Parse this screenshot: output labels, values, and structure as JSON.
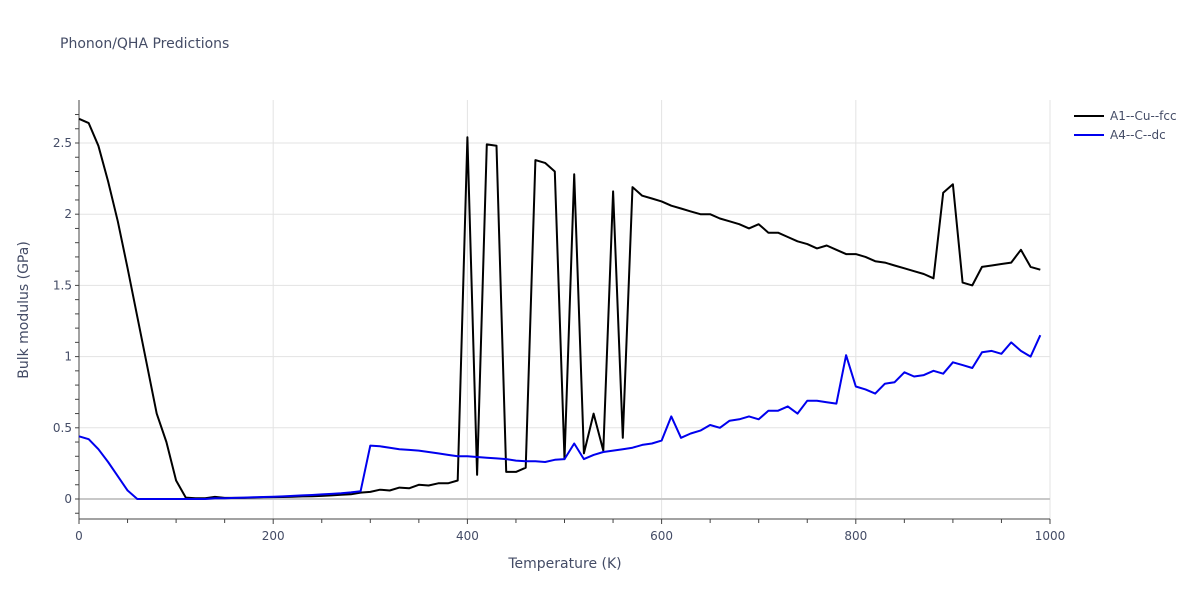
{
  "chart_title": "Phonon/QHA Predictions",
  "colors": {
    "series_1": "#000000",
    "series_2": "#0000ee",
    "grid": "#e3e3e3",
    "zeroline": "#c8c8c8",
    "axis_text": "#444c66"
  },
  "legend": {
    "items": [
      {
        "label": "A1--Cu--fcc",
        "color": "#000000"
      },
      {
        "label": "A4--C--dc",
        "color": "#0000ee"
      }
    ]
  },
  "axes": {
    "x": {
      "label": "Temperature (K)",
      "ticks": [
        "0",
        "200",
        "400",
        "600",
        "800",
        "1000"
      ]
    },
    "y": {
      "label": "Bulk modulus (GPa)",
      "ticks": [
        "0",
        "0.5",
        "1",
        "1.5",
        "2",
        "2.5"
      ]
    }
  },
  "chart_data": {
    "type": "line",
    "title": "Phonon/QHA Predictions",
    "xlabel": "Temperature (K)",
    "ylabel": "Bulk modulus (GPa)",
    "xlim": [
      0,
      1000
    ],
    "ylim": [
      -0.14,
      2.8
    ],
    "grid": true,
    "legend_position": "top-right outside",
    "series": [
      {
        "name": "A1--Cu--fcc",
        "color": "#000000",
        "x": [
          0,
          10,
          20,
          30,
          40,
          50,
          60,
          70,
          80,
          90,
          100,
          110,
          120,
          130,
          140,
          150,
          160,
          170,
          180,
          190,
          200,
          210,
          220,
          230,
          240,
          250,
          260,
          270,
          280,
          290,
          300,
          310,
          320,
          330,
          340,
          350,
          360,
          370,
          380,
          390,
          400,
          410,
          420,
          430,
          440,
          450,
          460,
          470,
          480,
          490,
          500,
          510,
          520,
          530,
          540,
          550,
          560,
          570,
          580,
          590,
          600,
          610,
          620,
          630,
          640,
          650,
          660,
          670,
          680,
          690,
          700,
          710,
          720,
          730,
          740,
          750,
          760,
          770,
          780,
          790,
          800,
          810,
          820,
          830,
          840,
          850,
          860,
          870,
          880,
          890,
          900,
          910,
          920,
          930,
          940,
          950,
          960,
          970,
          980,
          990
        ],
        "values": [
          2.67,
          2.64,
          2.48,
          2.23,
          1.95,
          1.62,
          1.28,
          0.94,
          0.6,
          0.4,
          0.13,
          0.01,
          0.005,
          0.005,
          0.015,
          0.008,
          0.008,
          0.008,
          0.01,
          0.012,
          0.013,
          0.014,
          0.016,
          0.018,
          0.02,
          0.022,
          0.025,
          0.03,
          0.033,
          0.045,
          0.05,
          0.065,
          0.06,
          0.08,
          0.075,
          0.1,
          0.095,
          0.11,
          0.11,
          0.13,
          2.54,
          0.17,
          2.49,
          2.48,
          0.19,
          0.19,
          0.22,
          2.38,
          2.36,
          2.3,
          0.28,
          2.28,
          0.32,
          0.6,
          0.34,
          2.16,
          0.43,
          2.19,
          2.13,
          2.11,
          2.09,
          2.06,
          2.04,
          2.02,
          2.0,
          2.0,
          1.97,
          1.95,
          1.93,
          1.9,
          1.93,
          1.87,
          1.87,
          1.84,
          1.81,
          1.79,
          1.76,
          1.78,
          1.75,
          1.72,
          1.72,
          1.7,
          1.67,
          1.66,
          1.64,
          1.62,
          1.6,
          1.58,
          1.55,
          2.15,
          2.21,
          1.52,
          1.5,
          1.63,
          1.64,
          1.65,
          1.66,
          1.75,
          1.63,
          1.61
        ]
      },
      {
        "name": "A4--C--dc",
        "color": "#0000ee",
        "x": [
          0,
          10,
          20,
          30,
          40,
          50,
          60,
          70,
          80,
          90,
          100,
          110,
          120,
          130,
          140,
          150,
          160,
          170,
          180,
          190,
          200,
          210,
          220,
          230,
          240,
          250,
          260,
          270,
          280,
          290,
          300,
          310,
          320,
          330,
          340,
          350,
          360,
          370,
          380,
          390,
          400,
          410,
          420,
          430,
          440,
          450,
          460,
          470,
          480,
          490,
          500,
          510,
          520,
          530,
          540,
          550,
          560,
          570,
          580,
          590,
          600,
          610,
          620,
          630,
          640,
          650,
          660,
          670,
          680,
          690,
          700,
          710,
          720,
          730,
          740,
          750,
          760,
          770,
          780,
          790,
          800,
          810,
          820,
          830,
          840,
          850,
          860,
          870,
          880,
          890,
          900,
          910,
          920,
          930,
          940,
          950,
          960,
          970,
          980,
          990
        ],
        "values": [
          0.44,
          0.42,
          0.35,
          0.26,
          0.16,
          0.06,
          0.0,
          0.0,
          0.0,
          0.0,
          0.0,
          0.0,
          0.0,
          0.0,
          0.005,
          0.005,
          0.008,
          0.01,
          0.012,
          0.014,
          0.016,
          0.018,
          0.022,
          0.025,
          0.028,
          0.032,
          0.036,
          0.04,
          0.046,
          0.055,
          0.375,
          0.37,
          0.36,
          0.35,
          0.345,
          0.34,
          0.33,
          0.32,
          0.31,
          0.3,
          0.3,
          0.295,
          0.29,
          0.285,
          0.28,
          0.27,
          0.265,
          0.265,
          0.26,
          0.275,
          0.28,
          0.39,
          0.28,
          0.31,
          0.33,
          0.34,
          0.35,
          0.36,
          0.38,
          0.39,
          0.41,
          0.58,
          0.43,
          0.46,
          0.48,
          0.52,
          0.5,
          0.55,
          0.56,
          0.58,
          0.56,
          0.62,
          0.62,
          0.65,
          0.6,
          0.69,
          0.69,
          0.68,
          0.67,
          1.01,
          0.79,
          0.77,
          0.74,
          0.81,
          0.82,
          0.89,
          0.86,
          0.87,
          0.9,
          0.88,
          0.96,
          0.94,
          0.92,
          1.03,
          1.04,
          1.02,
          1.1,
          1.04,
          1.0,
          1.15
        ]
      }
    ]
  }
}
